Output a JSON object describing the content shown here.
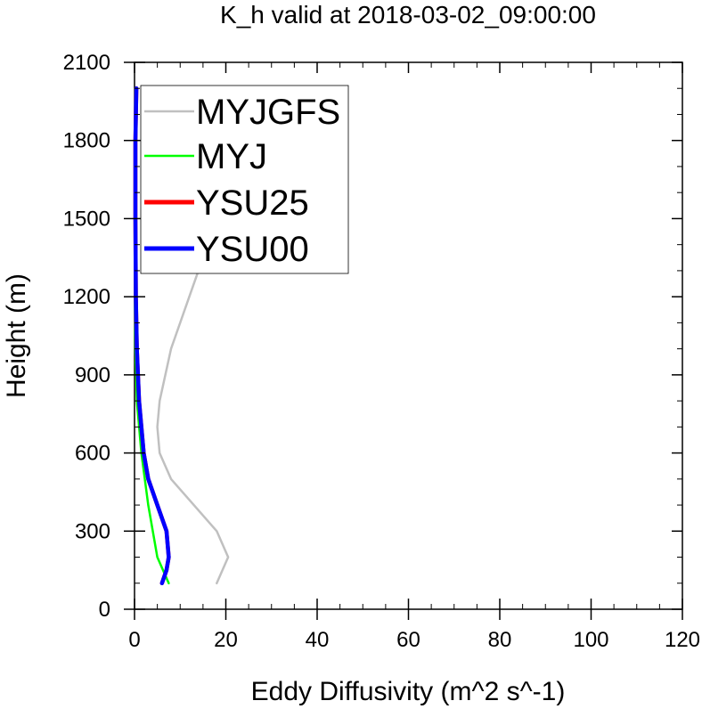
{
  "chart_data": {
    "type": "line",
    "title": "K_h valid at 2018-03-02_09:00:00",
    "xlabel": "Eddy Diffusivity (m^2 s^-1)",
    "ylabel": "Height (m)",
    "xlim": [
      0,
      120
    ],
    "ylim": [
      0,
      2100
    ],
    "xticks": [
      "0",
      "20",
      "40",
      "60",
      "80",
      "100",
      "120"
    ],
    "yticks": [
      "0",
      "300",
      "600",
      "900",
      "1200",
      "1500",
      "1800",
      "2100"
    ],
    "grid": false,
    "legend_position": "top-left",
    "series": [
      {
        "name": "MYJGFS",
        "color": "#c0c0c0",
        "width": "thin",
        "points": [
          [
            18,
            100
          ],
          [
            20.5,
            200
          ],
          [
            18,
            300
          ],
          [
            8,
            500
          ],
          [
            5.5,
            600
          ],
          [
            5,
            700
          ],
          [
            5.5,
            800
          ],
          [
            8,
            1000
          ],
          [
            12,
            1200
          ],
          [
            16,
            1400
          ],
          [
            20,
            1600
          ],
          [
            24,
            1800
          ],
          [
            26,
            1900
          ],
          [
            28,
            2000
          ]
        ]
      },
      {
        "name": "MYJ",
        "color": "#00ff00",
        "width": "thin",
        "points": [
          [
            7.5,
            100
          ],
          [
            5,
            200
          ],
          [
            3,
            400
          ],
          [
            1.5,
            600
          ],
          [
            0.5,
            800
          ],
          [
            0.2,
            1000
          ],
          [
            0.1,
            1200
          ],
          [
            0.1,
            1500
          ],
          [
            0.1,
            1800
          ],
          [
            0.2,
            2000
          ]
        ]
      },
      {
        "name": "YSU25",
        "color": "#ff0000",
        "width": "thick",
        "points": [
          [
            6,
            100
          ],
          [
            7,
            150
          ],
          [
            7.5,
            200
          ],
          [
            7,
            300
          ],
          [
            5,
            400
          ],
          [
            3,
            500
          ],
          [
            2,
            600
          ],
          [
            1,
            800
          ],
          [
            0.5,
            1000
          ],
          [
            0.3,
            1200
          ],
          [
            0.2,
            1500
          ],
          [
            0.2,
            1800
          ],
          [
            0.4,
            2000
          ]
        ]
      },
      {
        "name": "YSU00",
        "color": "#0000ff",
        "width": "thick",
        "points": [
          [
            6,
            100
          ],
          [
            7,
            150
          ],
          [
            7.5,
            200
          ],
          [
            7,
            300
          ],
          [
            5,
            400
          ],
          [
            3,
            500
          ],
          [
            2,
            600
          ],
          [
            1,
            800
          ],
          [
            0.5,
            1000
          ],
          [
            0.3,
            1200
          ],
          [
            0.2,
            1500
          ],
          [
            0.2,
            1800
          ],
          [
            0.4,
            2000
          ]
        ]
      }
    ]
  }
}
